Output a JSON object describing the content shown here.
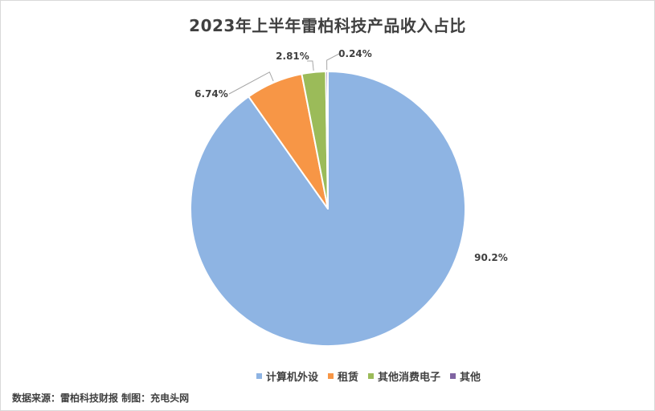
{
  "chart_data": {
    "type": "pie",
    "title": "2023年上半年雷柏科技产品收入占比",
    "categories": [
      "计算机外设",
      "租赁",
      "其他消费电子",
      "其他"
    ],
    "values": [
      90.2,
      6.74,
      2.81,
      0.24
    ],
    "labels": [
      "90.2%",
      "6.74%",
      "2.81%",
      "0.24%"
    ],
    "colors": [
      "#8eb4e3",
      "#f79646",
      "#9bbb59",
      "#8064a2"
    ],
    "legend_position": "bottom"
  },
  "footer": {
    "source": "数据来源：雷柏科技财报 制图：充电头网"
  }
}
